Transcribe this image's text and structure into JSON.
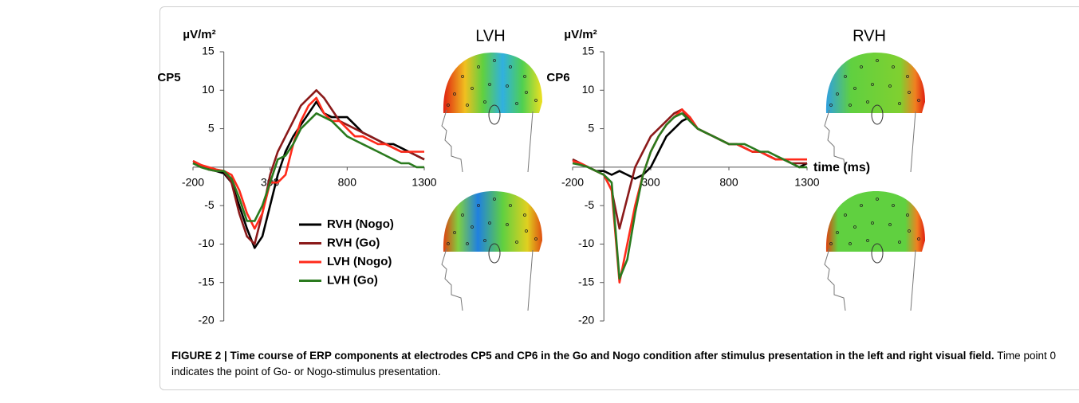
{
  "chart_data": [
    {
      "type": "line",
      "title": "CP5",
      "ylabel": "µV/m²",
      "map_label": "LVH",
      "x": [
        -200,
        -150,
        -100,
        -50,
        0,
        50,
        100,
        150,
        200,
        250,
        300,
        350,
        400,
        450,
        500,
        550,
        600,
        650,
        700,
        750,
        800,
        850,
        900,
        950,
        1000,
        1050,
        1100,
        1150,
        1200,
        1250,
        1300
      ],
      "xlim": [
        -200,
        1300
      ],
      "xticks": [
        -200,
        300,
        800,
        1300
      ],
      "ylim": [
        -20,
        15
      ],
      "yticks": [
        -20,
        -15,
        -10,
        -5,
        5,
        10,
        15
      ],
      "legend": "lower center",
      "series": [
        {
          "name": "RVH (Nogo)",
          "color": "#000000",
          "values": [
            0.8,
            0.3,
            -0.2,
            -0.5,
            -0.8,
            -2,
            -5,
            -8,
            -10.5,
            -9,
            -5,
            -1,
            2,
            4,
            5.5,
            7,
            8.5,
            7,
            6.5,
            6.5,
            6.5,
            5.5,
            4.5,
            4,
            3.5,
            3,
            3,
            2.5,
            2,
            1.5,
            1
          ]
        },
        {
          "name": "RVH (Go)",
          "color": "#8b1a1a",
          "values": [
            0.5,
            0.2,
            -0.3,
            -0.5,
            -0.5,
            -2,
            -6,
            -9,
            -10,
            -6,
            -1,
            2,
            4,
            6,
            8,
            9,
            10,
            9,
            7.5,
            6,
            5.5,
            5,
            4.5,
            4,
            3.5,
            3,
            2.5,
            2,
            2,
            1.5,
            1
          ]
        },
        {
          "name": "LVH (Nogo)",
          "color": "#ff2a1a",
          "values": [
            0.8,
            0.3,
            0,
            -0.3,
            -0.5,
            -1,
            -3,
            -6,
            -8,
            -6,
            -2,
            -2,
            -1,
            3,
            6,
            8,
            9,
            7,
            6,
            6,
            5,
            4,
            4,
            3.5,
            3,
            3,
            2.5,
            2,
            2,
            2,
            2
          ]
        },
        {
          "name": "LVH (Go)",
          "color": "#2a7a1e",
          "values": [
            0.5,
            0,
            -0.3,
            -0.5,
            -0.5,
            -1.5,
            -4,
            -7,
            -7,
            -5,
            -2,
            1,
            1.5,
            3,
            5,
            6,
            7,
            6.5,
            6,
            5,
            4,
            3.5,
            3,
            2.5,
            2,
            1.5,
            1,
            0.5,
            0.5,
            0,
            0
          ]
        }
      ]
    },
    {
      "type": "line",
      "title": "CP6",
      "ylabel": "µV/m²",
      "xlabel": "time (ms)",
      "map_label": "RVH",
      "x": [
        -200,
        -150,
        -100,
        -50,
        0,
        50,
        100,
        150,
        200,
        250,
        300,
        350,
        400,
        450,
        500,
        550,
        600,
        650,
        700,
        750,
        800,
        850,
        900,
        950,
        1000,
        1050,
        1100,
        1150,
        1200,
        1250,
        1300
      ],
      "xlim": [
        -200,
        1300
      ],
      "xticks": [
        -200,
        300,
        800,
        1300
      ],
      "ylim": [
        -20,
        15
      ],
      "yticks": [
        -20,
        -15,
        -10,
        -5,
        5,
        10,
        15
      ],
      "series": [
        {
          "color": "#000000",
          "values": [
            1,
            0.5,
            0,
            -0.5,
            -0.5,
            -1,
            -0.5,
            -1,
            -1.5,
            -1,
            0,
            2,
            4,
            5,
            6,
            6.5,
            5,
            4.5,
            4,
            3.5,
            3,
            3,
            2.5,
            2,
            2,
            1.5,
            1,
            1,
            0.5,
            0,
            0.5
          ]
        },
        {
          "color": "#8b1a1a",
          "values": [
            1,
            0.5,
            0,
            -0.5,
            -1,
            -3,
            -8,
            -4,
            0,
            2,
            4,
            5,
            6,
            7,
            7.5,
            6,
            5,
            4.5,
            4,
            3.5,
            3,
            3,
            2.5,
            2,
            2,
            1.5,
            1,
            1,
            0.5,
            0.5,
            0.5
          ]
        },
        {
          "color": "#ff2a1a",
          "values": [
            0.8,
            0.5,
            0,
            -0.5,
            -1,
            -3,
            -15,
            -10,
            -5,
            -1,
            2,
            4,
            5.5,
            6.5,
            7.5,
            6.5,
            5,
            4.5,
            4,
            3.5,
            3,
            3,
            2.5,
            2,
            2,
            1.5,
            1,
            1,
            1,
            1,
            1
          ]
        },
        {
          "color": "#2a7a1e",
          "values": [
            0.5,
            0.3,
            0,
            -0.5,
            -1,
            -2,
            -14.5,
            -12,
            -6,
            -1,
            2,
            4,
            5.5,
            6.5,
            7,
            6,
            5,
            4.5,
            4,
            3.5,
            3,
            3,
            3,
            2.5,
            2,
            2,
            1.5,
            1,
            0.5,
            0,
            0
          ]
        }
      ]
    }
  ],
  "caption": {
    "bold": "FIGURE 2 | Time course of ERP components at electrodes CP5 and CP6 in the Go and Nogo condition after stimulus presentation in the left and right visual field.",
    "text": " Time point 0 indicates the point of Go- or Nogo-stimulus presentation."
  }
}
